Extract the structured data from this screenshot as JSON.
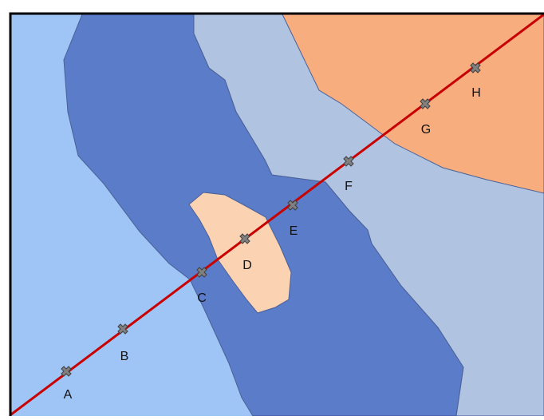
{
  "colors": {
    "background_region": "#9ec5f5",
    "dark_band": "#5b7cc9",
    "light_region": "#b0c4e2",
    "orange_region": "#f8ad7e",
    "peach_island": "#fcd3b2",
    "region_stroke": "#4a6096",
    "transect_line": "#c80000",
    "marker_fill": "#808080",
    "marker_stroke": "#404040",
    "frame": "#000000"
  },
  "transect": {
    "markers": [
      {
        "label": "A"
      },
      {
        "label": "B"
      },
      {
        "label": "C"
      },
      {
        "label": "D"
      },
      {
        "label": "E"
      },
      {
        "label": "F"
      },
      {
        "label": "G"
      },
      {
        "label": "H"
      }
    ],
    "marker_icon": "x-marker-icon"
  }
}
